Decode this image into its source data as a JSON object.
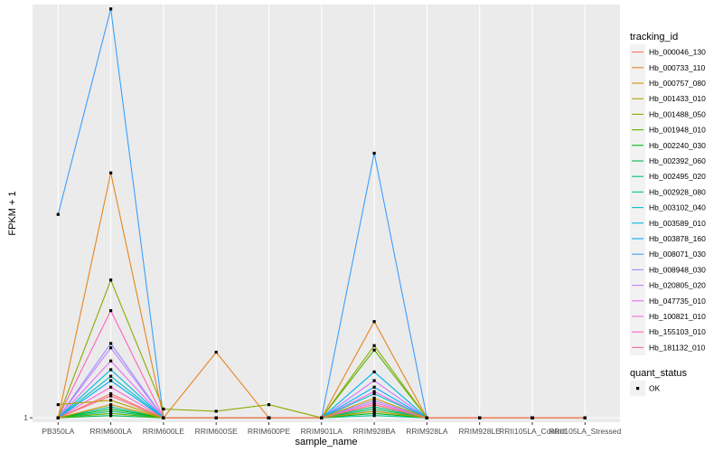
{
  "chart_data": {
    "type": "line",
    "xlabel": "sample_name",
    "ylabel": "FPKM + 1",
    "y_ticks": [
      1
    ],
    "ylim": [
      0.8,
      19.9
    ],
    "grid": true,
    "legend_position": "right",
    "categories": [
      "PB350LA",
      "RRIM600LA",
      "RRIM600LE",
      "RRIM600SE",
      "RRIM600PE",
      "RRIM901LA",
      "RRIM928BA",
      "RRIM928LA",
      "RRIM928LE",
      "RRII105LA_Control",
      "RRII105LA_Stressed"
    ],
    "series_legend_title": "tracking_id",
    "series": [
      {
        "name": "Hb_000046_130",
        "color": "#F8766D",
        "values": [
          1,
          2.1,
          1,
          1,
          1,
          1,
          1.6,
          1,
          1,
          1,
          1
        ]
      },
      {
        "name": "Hb_000733_110",
        "color": "#E7851E",
        "values": [
          1,
          12.2,
          1,
          4,
          1,
          1,
          5.4,
          1,
          1,
          1,
          1
        ]
      },
      {
        "name": "Hb_000757_080",
        "color": "#D09400",
        "values": [
          1,
          1.6,
          1,
          1,
          1,
          1,
          1.9,
          1,
          1,
          1,
          1
        ]
      },
      {
        "name": "Hb_001433_010",
        "color": "#B2A100",
        "values": [
          1.6,
          1.8,
          1,
          1,
          1,
          1,
          1.3,
          1,
          1,
          1,
          1
        ]
      },
      {
        "name": "Hb_001488_050",
        "color": "#8BAB00",
        "values": [
          1,
          7.3,
          1.4,
          1.3,
          1.6,
          1,
          4.3,
          1,
          1,
          1,
          1
        ]
      },
      {
        "name": "Hb_001948_010",
        "color": "#55B300",
        "values": [
          1,
          1.2,
          1,
          1,
          1,
          1,
          4.1,
          1,
          1,
          1,
          1
        ]
      },
      {
        "name": "Hb_002240_030",
        "color": "#00B813",
        "values": [
          1,
          1.4,
          1,
          1,
          1,
          1,
          1.2,
          1,
          1,
          1,
          1
        ]
      },
      {
        "name": "Hb_002392_060",
        "color": "#00BC56",
        "values": [
          1,
          1.1,
          1,
          1,
          1,
          1,
          1.4,
          1,
          1,
          1,
          1
        ]
      },
      {
        "name": "Hb_002495_020",
        "color": "#00BE7D",
        "values": [
          1,
          1.3,
          1,
          1,
          1,
          1,
          1.5,
          1,
          1,
          1,
          1
        ]
      },
      {
        "name": "Hb_002928_080",
        "color": "#00C19F",
        "values": [
          1,
          1.5,
          1,
          1,
          1,
          1,
          1.1,
          1,
          1,
          1,
          1
        ]
      },
      {
        "name": "Hb_003102_040",
        "color": "#00BFC4",
        "values": [
          1,
          2.9,
          1,
          1,
          1,
          1,
          2.1,
          1,
          1,
          1,
          1
        ]
      },
      {
        "name": "Hb_003589_010",
        "color": "#00B8E5",
        "values": [
          1,
          3.2,
          1,
          1,
          1,
          1,
          3.1,
          1,
          1,
          1,
          1
        ]
      },
      {
        "name": "Hb_003878_160",
        "color": "#00ADFA",
        "values": [
          1,
          2.7,
          1,
          1,
          1,
          1,
          2.4,
          1,
          1,
          1,
          1
        ]
      },
      {
        "name": "Hb_008071_030",
        "color": "#3A9FFF",
        "values": [
          10.3,
          19.7,
          1,
          1,
          1,
          1,
          13.1,
          1,
          1,
          1,
          1
        ]
      },
      {
        "name": "Hb_008948_030",
        "color": "#9590FF",
        "values": [
          1,
          4.4,
          1,
          1,
          1,
          1,
          1.8,
          1,
          1,
          1,
          1
        ]
      },
      {
        "name": "Hb_020805_020",
        "color": "#C77CFF",
        "values": [
          1,
          4.2,
          1,
          1,
          1,
          1,
          2.7,
          1,
          1,
          1,
          1
        ]
      },
      {
        "name": "Hb_047735_010",
        "color": "#E76BF3",
        "values": [
          1,
          3.6,
          1,
          1,
          1,
          1,
          2.2,
          1,
          1,
          1,
          1
        ]
      },
      {
        "name": "Hb_100821_010",
        "color": "#F763E0",
        "values": [
          1,
          2.4,
          1,
          1,
          1,
          1,
          1.7,
          1,
          1,
          1,
          1
        ]
      },
      {
        "name": "Hb_155103_010",
        "color": "#FF62BC",
        "values": [
          1,
          5.9,
          1,
          1,
          1,
          1,
          1.6,
          1,
          1,
          1,
          1
        ]
      },
      {
        "name": "Hb_181132_010",
        "color": "#FF6C91",
        "values": [
          1,
          2.0,
          1,
          1,
          1,
          1,
          1.3,
          1,
          1,
          1,
          1
        ]
      }
    ],
    "shape_legend": {
      "title": "quant_status",
      "items": [
        {
          "label": "OK"
        }
      ]
    }
  }
}
